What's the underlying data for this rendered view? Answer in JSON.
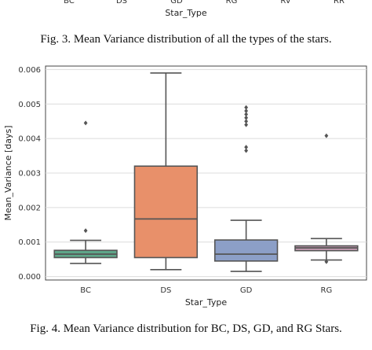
{
  "fig3": {
    "tick_labels": [
      "BC",
      "DS",
      "GD",
      "RG",
      "RV",
      "RR"
    ],
    "xlabel": "Star_Type",
    "caption": "Fig. 3. Mean Variance distribution of all the types of the stars."
  },
  "fig4": {
    "caption": "Fig. 4. Mean Variance distribution for BC, DS, GD, and RG Stars."
  },
  "chart_data": {
    "type": "box",
    "title": "",
    "xlabel": "Star_Type",
    "ylabel": "Mean_Variance [days]",
    "categories": [
      "BC",
      "DS",
      "GD",
      "RG"
    ],
    "ylim": [
      -0.0001,
      0.0061
    ],
    "yticks": [
      0.0,
      0.001,
      0.002,
      0.003,
      0.004,
      0.005,
      0.006
    ],
    "ytick_labels": [
      "0.000",
      "0.001",
      "0.002",
      "0.003",
      "0.004",
      "0.005",
      "0.006"
    ],
    "grid": true,
    "colors": [
      "#5fa689",
      "#e8906a",
      "#8c9fc7",
      "#c99db5"
    ],
    "boxes": [
      {
        "category": "BC",
        "whisker_low": 0.00038,
        "q1": 0.00055,
        "median": 0.00065,
        "q3": 0.00076,
        "whisker_high": 0.00105,
        "outliers": [
          0.00133,
          0.00445
        ]
      },
      {
        "category": "DS",
        "whisker_low": 0.0002,
        "q1": 0.00055,
        "median": 0.00167,
        "q3": 0.0032,
        "whisker_high": 0.0059,
        "outliers": []
      },
      {
        "category": "GD",
        "whisker_low": 0.00015,
        "q1": 0.00045,
        "median": 0.00065,
        "q3": 0.00106,
        "whisker_high": 0.00163,
        "outliers": [
          0.00365,
          0.00375,
          0.0044,
          0.0045,
          0.0046,
          0.0047,
          0.0048,
          0.0049
        ]
      },
      {
        "category": "RG",
        "whisker_low": 0.00048,
        "q1": 0.00075,
        "median": 0.00083,
        "q3": 0.00089,
        "whisker_high": 0.0011,
        "outliers": [
          0.00043,
          0.00408
        ]
      }
    ]
  }
}
